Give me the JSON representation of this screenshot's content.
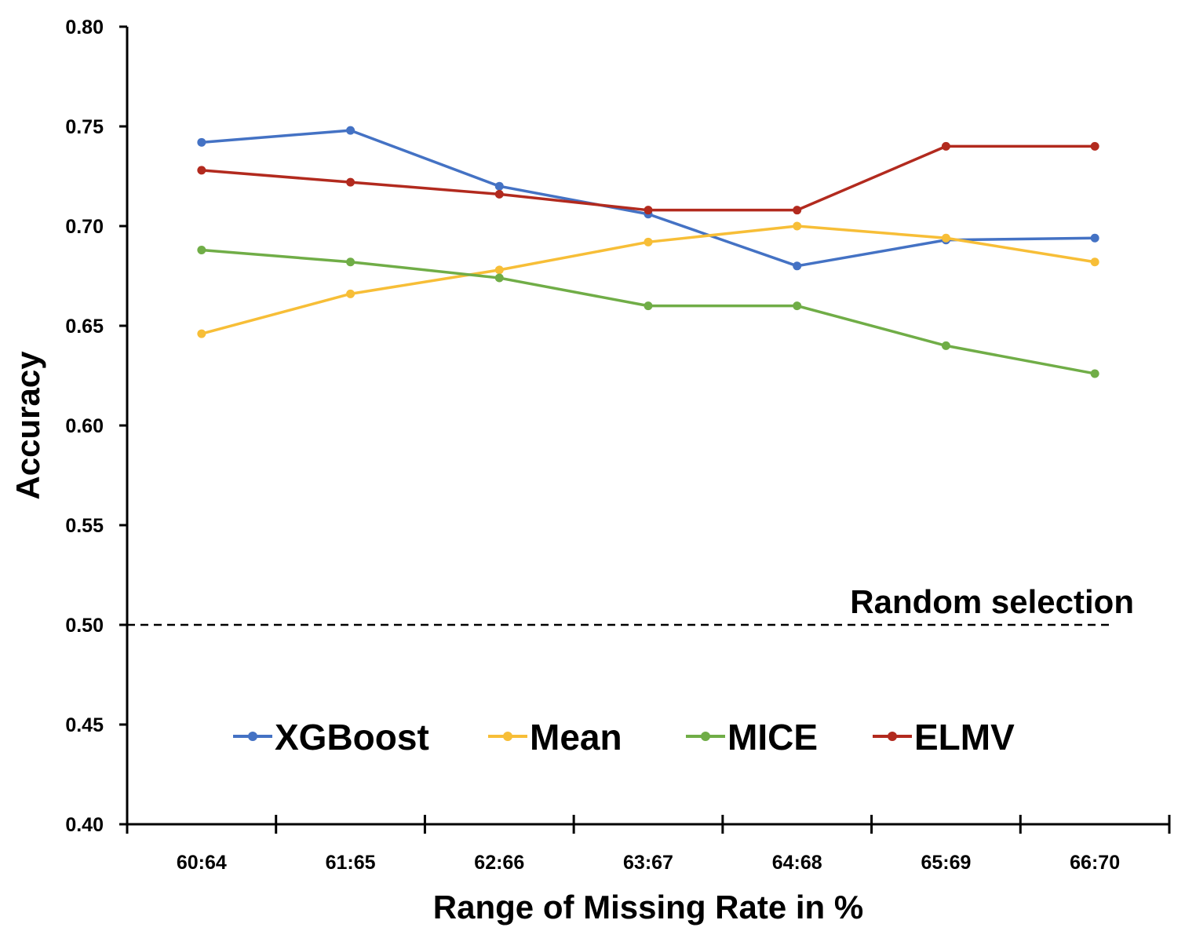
{
  "chart_data": {
    "type": "line",
    "title": "",
    "xlabel": "Range of Missing Rate in %",
    "ylabel": "Accuracy",
    "categories": [
      "60:64",
      "61:65",
      "62:66",
      "63:67",
      "64:68",
      "65:69",
      "66:70"
    ],
    "ylim": [
      0.4,
      0.8
    ],
    "yticks": [
      "0.40",
      "0.45",
      "0.50",
      "0.55",
      "0.60",
      "0.65",
      "0.70",
      "0.75",
      "0.80"
    ],
    "grid": false,
    "legend_position": "bottom-center",
    "series": [
      {
        "name": "XGBoost",
        "color": "#4472C4",
        "values": [
          0.742,
          0.748,
          0.72,
          0.706,
          0.68,
          0.693,
          0.694
        ]
      },
      {
        "name": "Mean",
        "color": "#F7BE37",
        "values": [
          0.646,
          0.666,
          0.678,
          0.692,
          0.7,
          0.694,
          0.682
        ]
      },
      {
        "name": "MICE",
        "color": "#70AD47",
        "values": [
          0.688,
          0.682,
          0.674,
          0.66,
          0.66,
          0.64,
          0.626
        ]
      },
      {
        "name": "ELMV",
        "color": "#B22A1E",
        "values": [
          0.728,
          0.722,
          0.716,
          0.708,
          0.708,
          0.74,
          0.74
        ]
      }
    ],
    "reference_line": {
      "label": "Random selection",
      "value": 0.5
    }
  }
}
